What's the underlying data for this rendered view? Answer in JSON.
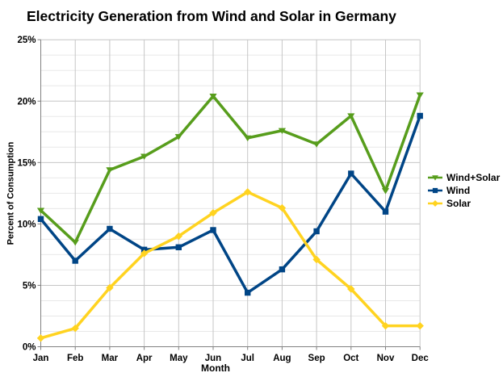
{
  "chart": {
    "title": "Electricity Generation from Wind and Solar in Germany",
    "xlabel": "Month",
    "ylabel": "Percent of Consumption"
  },
  "chart_data": {
    "type": "line",
    "title": "Electricity Generation from Wind and Solar in Germany",
    "xlabel": "Month",
    "ylabel": "Percent of Consumption",
    "categories": [
      "Jan",
      "Feb",
      "Mar",
      "Apr",
      "May",
      "Jun",
      "Jul",
      "Aug",
      "Sep",
      "Oct",
      "Nov",
      "Dec"
    ],
    "series": [
      {
        "name": "Wind+Solar",
        "color": "#579D1C",
        "marker": "triangle-down",
        "values": [
          11.1,
          8.5,
          14.4,
          15.5,
          17.1,
          20.4,
          17.0,
          17.6,
          16.5,
          18.8,
          12.7,
          20.5
        ]
      },
      {
        "name": "Wind",
        "color": "#004586",
        "marker": "square",
        "values": [
          10.4,
          7.0,
          9.6,
          7.9,
          8.1,
          9.5,
          4.4,
          6.3,
          9.4,
          14.1,
          11.0,
          18.8
        ]
      },
      {
        "name": "Solar",
        "color": "#FFD320",
        "marker": "diamond",
        "values": [
          0.7,
          1.5,
          4.8,
          7.6,
          9.0,
          10.9,
          12.6,
          11.3,
          7.1,
          4.7,
          1.7,
          1.7
        ]
      }
    ],
    "ylim": [
      0,
      25
    ],
    "y_major_step": 5,
    "y_minor_step": 1.25,
    "y_tick_labels": [
      "0%",
      "5%",
      "10%",
      "15%",
      "20%",
      "25%"
    ],
    "grid": true,
    "legend_position": "right"
  },
  "colors": {
    "background": "#ffffff",
    "text": "#000000",
    "axis": "#808080",
    "major_grid": "#c6c6c6",
    "minor_grid": "#e8e8e8"
  }
}
